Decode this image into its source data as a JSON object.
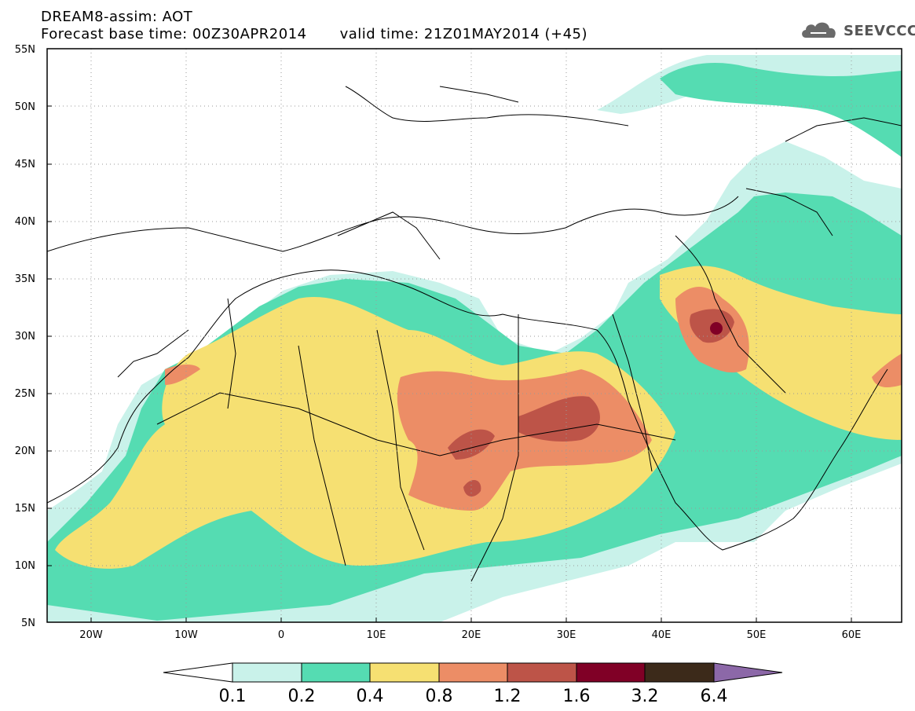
{
  "header": {
    "title": "DREAM8-assim: AOT",
    "base_time": "Forecast base time: 00Z30APR2014",
    "valid_time": "valid time: 21Z01MAY2014 (+45)",
    "logo_text": "SEEVCCC"
  },
  "map": {
    "lon_range": [
      -25,
      65
    ],
    "lat_range": [
      5,
      55
    ],
    "lat_labels": [
      "5N",
      "10N",
      "15N",
      "20N",
      "25N",
      "30N",
      "35N",
      "40N",
      "45N",
      "50N",
      "55N"
    ],
    "lon_labels": [
      "20W",
      "10W",
      "0",
      "10E",
      "20E",
      "30E",
      "40E",
      "50E",
      "60E"
    ],
    "grid": "dotted"
  },
  "colorbar": {
    "levels": [
      "0.1",
      "0.2",
      "0.4",
      "0.8",
      "1.2",
      "1.6",
      "3.2",
      "6.4"
    ],
    "colors": [
      "#c9f2ea",
      "#55dcb2",
      "#f6e072",
      "#ec8d66",
      "#bd5448",
      "#800026",
      "#3c2a1a",
      "#8c68a8"
    ]
  }
}
